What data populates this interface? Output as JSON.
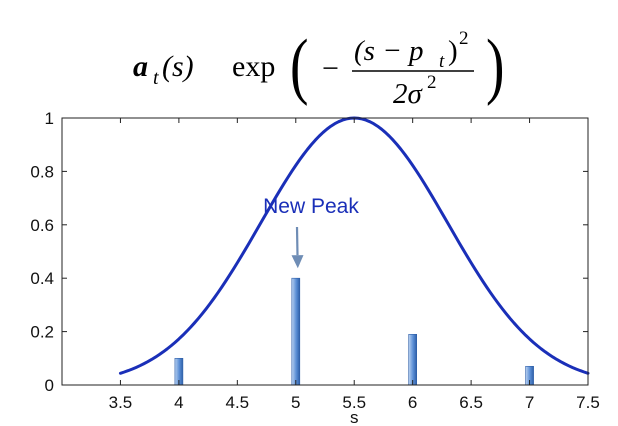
{
  "formula": {
    "vector": "a",
    "vector_sub": "t",
    "arg": "(s)",
    "func": "exp",
    "num_open": "(s − p",
    "num_sub": "t",
    "num_close": ")",
    "num_sup": "2",
    "den": "2σ",
    "den_sup": "2",
    "minus": "−"
  },
  "colors": {
    "curve": "#1a2fb8",
    "bar": "#5b8fd6",
    "bar_dark": "#2e5fa8",
    "bar_light": "#b8d0f0",
    "annotation": "#1a2fb8",
    "arrow": "#6f8db5",
    "axis": "#222222"
  },
  "chart_data": {
    "type": "bar",
    "xlabel": "s",
    "ylabel": "",
    "xlim": [
      3.0,
      7.5
    ],
    "ylim": [
      0,
      1
    ],
    "x_ticks": [
      "3.5",
      "4",
      "4.5",
      "5",
      "5.5",
      "6",
      "6.5",
      "7",
      "7.5"
    ],
    "y_ticks": [
      "0",
      "0.2",
      "0.4",
      "0.6",
      "0.8",
      "1"
    ],
    "grid": false,
    "legend": "none",
    "series": [
      {
        "type": "bar",
        "x": [
          4,
          5,
          6,
          7
        ],
        "values": [
          0.1,
          0.4,
          0.19,
          0.07
        ]
      },
      {
        "type": "line",
        "function": "gaussian",
        "mean": 5.5,
        "sigma": 0.8,
        "x_range": [
          3.5,
          7.5
        ]
      }
    ],
    "annotations": [
      {
        "text": "New Peak",
        "target_x": 5,
        "target_y": 0.4
      }
    ]
  }
}
